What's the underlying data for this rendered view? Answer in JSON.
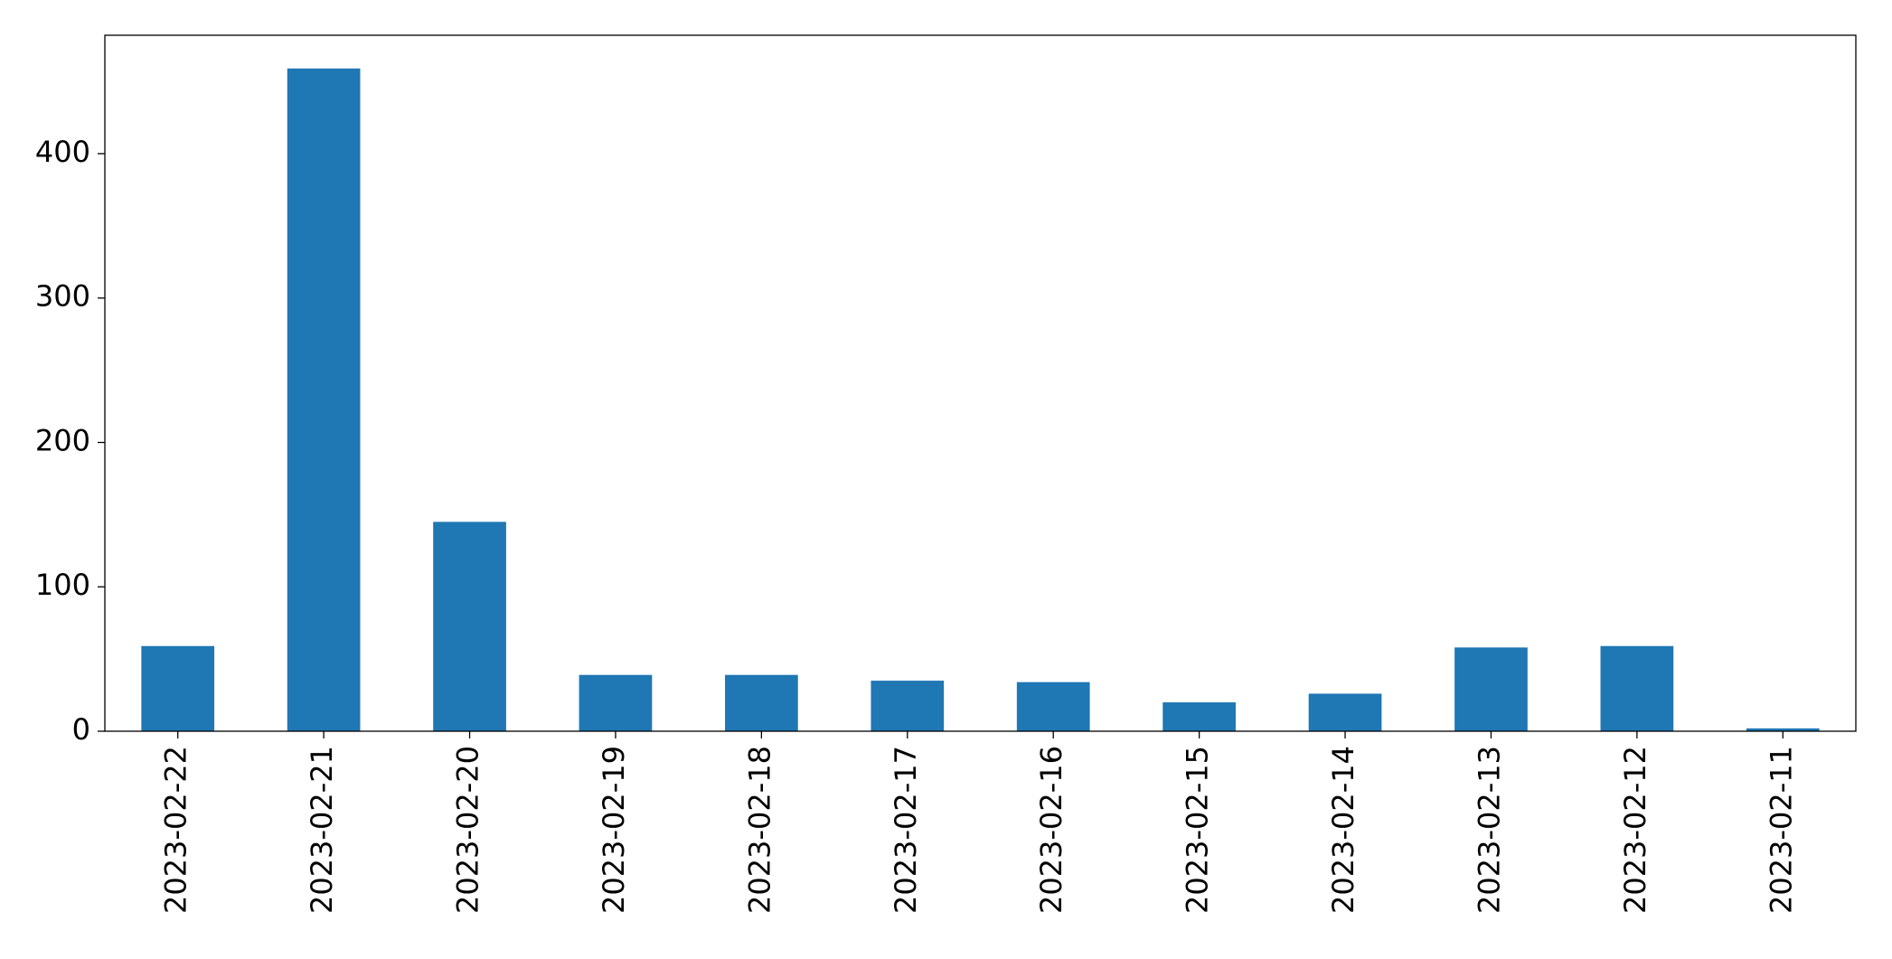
{
  "chart_data": {
    "type": "bar",
    "categories": [
      "2023-02-22",
      "2023-02-21",
      "2023-02-20",
      "2023-02-19",
      "2023-02-18",
      "2023-02-17",
      "2023-02-16",
      "2023-02-15",
      "2023-02-14",
      "2023-02-13",
      "2023-02-12",
      "2023-02-11"
    ],
    "values": [
      59,
      459,
      145,
      39,
      39,
      35,
      34,
      20,
      26,
      58,
      59,
      2
    ],
    "color": "#1f77b4",
    "ylim": [
      0,
      482
    ],
    "yticks": [
      0,
      100,
      200,
      300,
      400
    ],
    "grid": false
  }
}
